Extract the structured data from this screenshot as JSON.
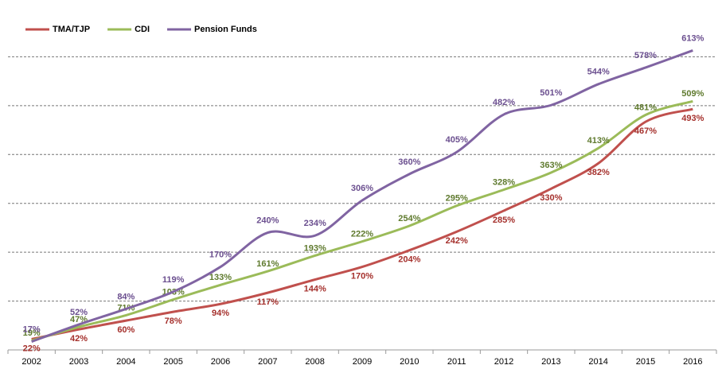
{
  "chart_data": {
    "type": "line",
    "categories": [
      "2002",
      "2003",
      "2004",
      "2005",
      "2006",
      "2007",
      "2008",
      "2009",
      "2010",
      "2011",
      "2012",
      "2013",
      "2014",
      "2015",
      "2016"
    ],
    "series": [
      {
        "name": "TMA/TJP",
        "color": "#c0504d",
        "label_color": "#a5302c",
        "values": [
          22,
          42,
          60,
          78,
          94,
          117,
          144,
          170,
          204,
          242,
          285,
          330,
          382,
          467,
          493
        ],
        "value_labels": [
          "22%",
          "42%",
          "60%",
          "78%",
          "94%",
          "117%",
          "144%",
          "170%",
          "204%",
          "242%",
          "285%",
          "330%",
          "382%",
          "467%",
          "493%"
        ]
      },
      {
        "name": "CDI",
        "color": "#9bbb59",
        "label_color": "#5f7a2e",
        "values": [
          19,
          47,
          71,
          103,
          133,
          161,
          193,
          222,
          254,
          295,
          328,
          363,
          413,
          481,
          509
        ],
        "value_labels": [
          "19%",
          "47%",
          "71%",
          "103%",
          "133%",
          "161%",
          "193%",
          "222%",
          "254%",
          "295%",
          "328%",
          "363%",
          "413%",
          "481%",
          "509%"
        ]
      },
      {
        "name": "Pension Funds",
        "color": "#8064a2",
        "label_color": "#6b4f8f",
        "values": [
          17,
          52,
          84,
          119,
          170,
          240,
          234,
          306,
          360,
          405,
          482,
          501,
          544,
          578,
          613
        ],
        "value_labels": [
          "17%",
          "52%",
          "84%",
          "119%",
          "170%",
          "240%",
          "234%",
          "306%",
          "360%",
          "405%",
          "482%",
          "501%",
          "544%",
          "578%",
          "613%"
        ]
      }
    ],
    "ylim": [
      0,
      700
    ],
    "yticks": [
      100,
      200,
      300,
      400,
      500,
      600
    ],
    "grid": true,
    "legend": "top-left"
  }
}
